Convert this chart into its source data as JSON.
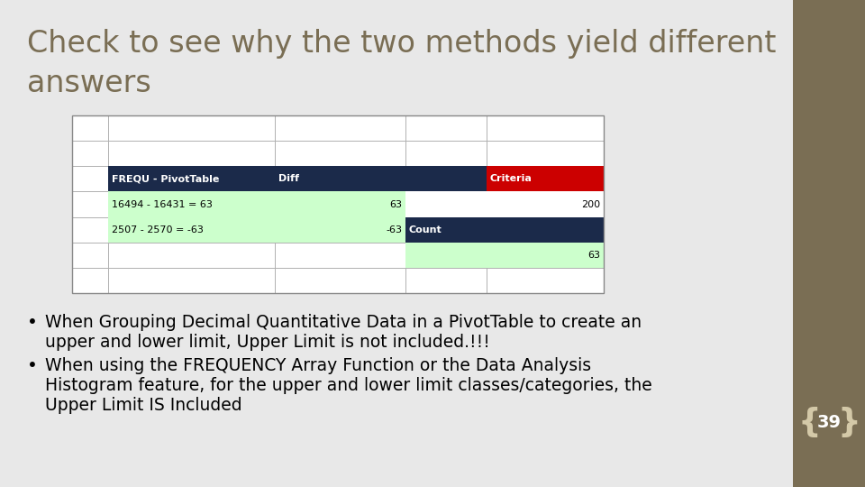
{
  "title_line1": "Check to see why the two methods yield different",
  "title_line2": "answers",
  "title_color": "#7a6e54",
  "title_fontsize": 24,
  "bg_color": "#e8e8e8",
  "right_bar_color": "#7a6e54",
  "slide_number": "39",
  "table": {
    "num_rows": 7,
    "num_cols": 5,
    "grid_color": "#b0b0b0",
    "cells": [
      {
        "row": 2,
        "col": 1,
        "text": "FREQU - PivotTable",
        "bg": "#1b2a4a",
        "fg": "#ffffff",
        "bold": true,
        "align": "left"
      },
      {
        "row": 2,
        "col": 2,
        "text": "Diff",
        "bg": "#1b2a4a",
        "fg": "#ffffff",
        "bold": true,
        "align": "left"
      },
      {
        "row": 2,
        "col": 3,
        "text": "",
        "bg": "#1b2a4a",
        "fg": "#ffffff",
        "bold": false,
        "align": "left"
      },
      {
        "row": 2,
        "col": 4,
        "text": "Criteria",
        "bg": "#cc0000",
        "fg": "#ffffff",
        "bold": true,
        "align": "left"
      },
      {
        "row": 3,
        "col": 1,
        "text": "16494 - 16431 = 63",
        "bg": "#ccffcc",
        "fg": "#000000",
        "bold": false,
        "align": "left"
      },
      {
        "row": 3,
        "col": 2,
        "text": "63",
        "bg": "#ccffcc",
        "fg": "#000000",
        "bold": false,
        "align": "right"
      },
      {
        "row": 3,
        "col": 3,
        "text": "",
        "bg": "#ffffff",
        "fg": "#000000",
        "bold": false,
        "align": "right"
      },
      {
        "row": 3,
        "col": 4,
        "text": "200",
        "bg": "#ffffff",
        "fg": "#000000",
        "bold": false,
        "align": "right"
      },
      {
        "row": 4,
        "col": 1,
        "text": "2507 - 2570 = -63",
        "bg": "#ccffcc",
        "fg": "#000000",
        "bold": false,
        "align": "left"
      },
      {
        "row": 4,
        "col": 2,
        "text": "-63",
        "bg": "#ccffcc",
        "fg": "#000000",
        "bold": false,
        "align": "right"
      },
      {
        "row": 4,
        "col": 3,
        "text": "Count",
        "bg": "#1b2a4a",
        "fg": "#ffffff",
        "bold": true,
        "align": "left"
      },
      {
        "row": 4,
        "col": 4,
        "text": "",
        "bg": "#1b2a4a",
        "fg": "#ffffff",
        "bold": false,
        "align": "right"
      },
      {
        "row": 5,
        "col": 3,
        "text": "",
        "bg": "#ccffcc",
        "fg": "#000000",
        "bold": false,
        "align": "right"
      },
      {
        "row": 5,
        "col": 4,
        "text": "63",
        "bg": "#ccffcc",
        "fg": "#000000",
        "bold": false,
        "align": "right"
      }
    ]
  },
  "bullet1_line1": "When Grouping Decimal Quantitative Data in a PivotTable to create an",
  "bullet1_line2": "upper and lower limit, Upper Limit is not included.!!!",
  "bullet2_line1": "When using the FREQUENCY Array Function or the Data Analysis",
  "bullet2_line2": "Histogram feature, for the upper and lower limit classes/categories, the",
  "bullet2_line3": "Upper Limit IS Included",
  "bullet_fontsize": 13.5,
  "bullet_color": "#000000"
}
